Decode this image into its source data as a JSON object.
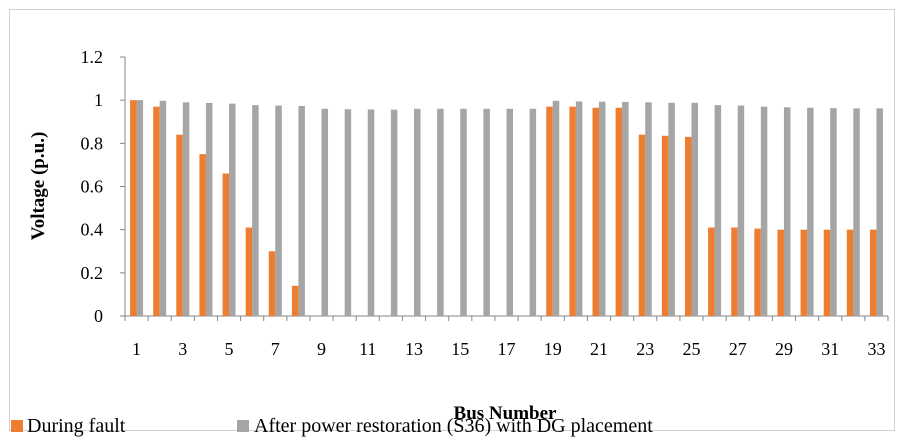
{
  "chart_data": {
    "type": "bar",
    "title": "",
    "xlabel": "Bus Number",
    "ylabel": "Voltage  (p.u.)",
    "ylim": [
      0,
      1.2
    ],
    "y_ticks": [
      "0",
      "0.2",
      "0.4",
      "0.6",
      "0.8",
      "1",
      "1.2"
    ],
    "categories": [
      1,
      2,
      3,
      4,
      5,
      6,
      7,
      8,
      9,
      10,
      11,
      12,
      13,
      14,
      15,
      16,
      17,
      18,
      19,
      20,
      21,
      22,
      23,
      24,
      25,
      26,
      27,
      28,
      29,
      30,
      31,
      32,
      33
    ],
    "x_tick_labels": [
      "1",
      "3",
      "5",
      "7",
      "9",
      "11",
      "13",
      "15",
      "17",
      "19",
      "21",
      "23",
      "25",
      "27",
      "29",
      "31",
      "33"
    ],
    "grid": false,
    "legend_position": "bottom",
    "series": [
      {
        "name": "During fault",
        "color": "#ed7d31",
        "values": [
          1.0,
          0.97,
          0.84,
          0.75,
          0.66,
          0.41,
          0.3,
          0.14,
          0,
          0,
          0,
          0,
          0,
          0,
          0,
          0,
          0,
          0,
          0.97,
          0.97,
          0.965,
          0.965,
          0.84,
          0.835,
          0.83,
          0.41,
          0.41,
          0.405,
          0.4,
          0.4,
          0.4,
          0.4,
          0.4
        ]
      },
      {
        "name": "After power restoration (S36) with DG placement",
        "color": "#a5a5a5",
        "values": [
          1.0,
          0.997,
          0.99,
          0.987,
          0.984,
          0.977,
          0.975,
          0.973,
          0.96,
          0.958,
          0.957,
          0.956,
          0.96,
          0.96,
          0.96,
          0.96,
          0.96,
          0.96,
          0.997,
          0.994,
          0.993,
          0.992,
          0.99,
          0.988,
          0.988,
          0.977,
          0.975,
          0.97,
          0.967,
          0.965,
          0.963,
          0.962,
          0.962
        ]
      }
    ]
  }
}
